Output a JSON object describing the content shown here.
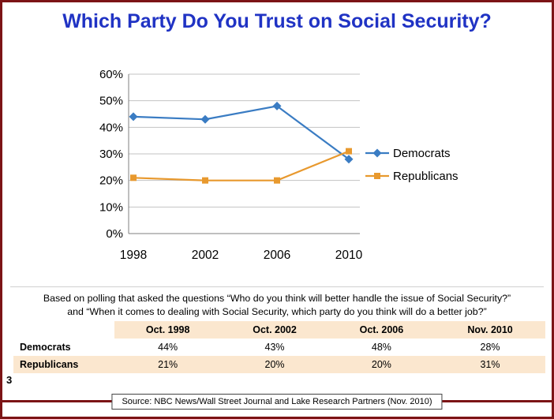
{
  "slide": {
    "title": "Which Party Do You Trust on Social Security?",
    "page_number": "3",
    "source": "Source: NBC News/Wall Street Journal and Lake Research Partners (Nov. 2010)"
  },
  "note": {
    "line1": "Based on polling that asked the questions “Who do you think will better handle the issue of Social Security?”",
    "line2": "and “When it comes to dealing with Social Security, which party do you think will do a better job?”"
  },
  "chart_data": {
    "type": "line",
    "categories": [
      "1998",
      "2002",
      "2006",
      "2010"
    ],
    "series": [
      {
        "name": "Democrats",
        "values": [
          44,
          43,
          48,
          28
        ],
        "color": "#3A7CC3",
        "marker": "diamond"
      },
      {
        "name": "Republicans",
        "values": [
          21,
          20,
          20,
          31
        ],
        "color": "#E8992E",
        "marker": "square"
      }
    ],
    "ylim": [
      0,
      60
    ],
    "ytick_step": 10,
    "ytick_labels": [
      "0%",
      "10%",
      "20%",
      "30%",
      "40%",
      "50%",
      "60%"
    ],
    "grid": true,
    "legend_position": "right"
  },
  "table": {
    "headers": [
      "",
      "Oct. 1998",
      "Oct. 2002",
      "Oct. 2006",
      "Nov. 2010"
    ],
    "rows": [
      {
        "label": "Democrats",
        "values": [
          "44%",
          "43%",
          "48%",
          "28%"
        ]
      },
      {
        "label": "Republicans",
        "values": [
          "21%",
          "20%",
          "20%",
          "31%"
        ]
      }
    ]
  },
  "colors": {
    "title_blue": "#2033C4",
    "democrats_blue": "#3A7CC3",
    "republicans_orange": "#E8992E",
    "table_band": "#FBE7CF",
    "slide_border_maroon": "#7C1416",
    "gridline_gray": "#C3C3C3"
  }
}
